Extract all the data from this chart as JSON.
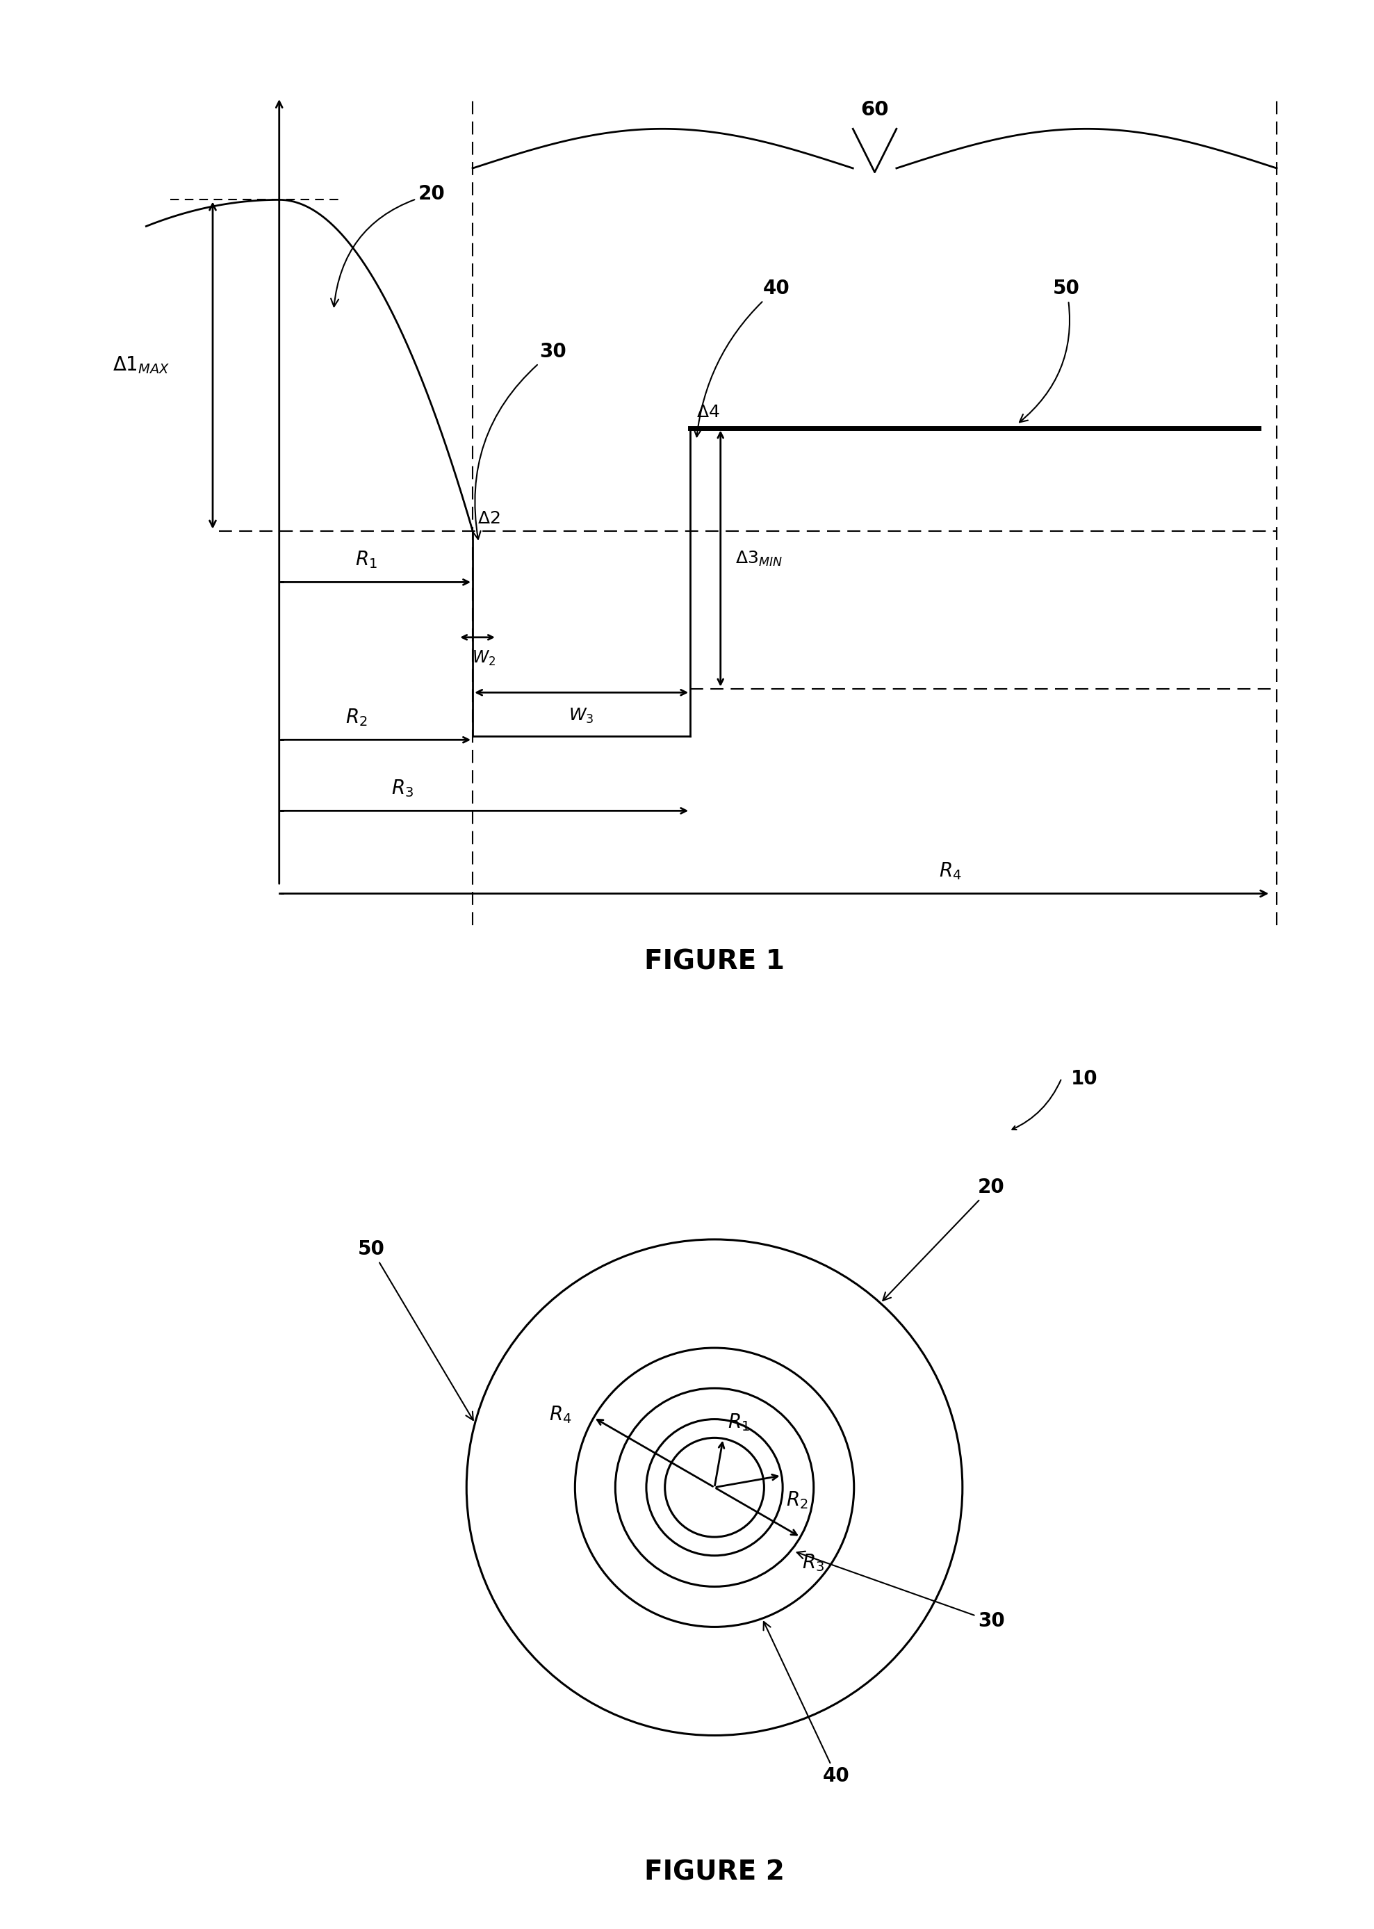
{
  "fig_width": 19.77,
  "fig_height": 27.75,
  "bg_color": "#ffffff",
  "fig1_title": "FIGURE 1",
  "fig2_title": "FIGURE 2",
  "lw": 2.0,
  "lw_thick": 5.0,
  "lw_thin": 1.5,
  "lw_dash": 1.5,
  "fontsize_label": 20,
  "fontsize_num": 20,
  "fontsize_title": 28,
  "fontsize_sub": 16,
  "arrow_ms": 16
}
